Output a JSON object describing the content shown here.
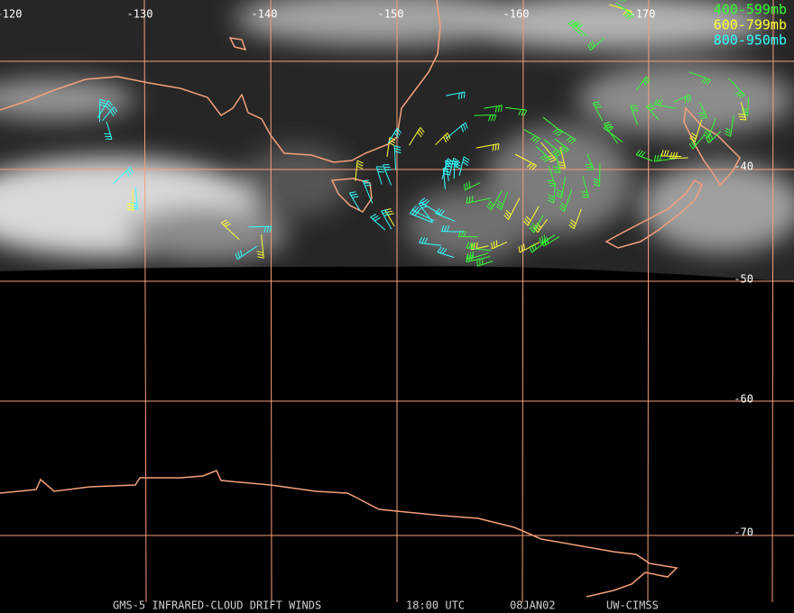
{
  "map": {
    "longitude_labels": [
      "-120",
      "-130",
      "-140",
      "-150",
      "-160",
      "-170"
    ],
    "latitude_labels": [
      "-40",
      "-50",
      "-60",
      "-70"
    ],
    "legend": [
      {
        "label": "400-599mb",
        "color": "#33ff33"
      },
      {
        "label": "600-799mb",
        "color": "#ffff33"
      },
      {
        "label": "800-950mb",
        "color": "#33ffff"
      }
    ],
    "footer": [
      "GMS-5 INFRARED-CLOUD DRIFT WINDS",
      "18:00 UTC",
      "08JAN02",
      "UW-CIMSS"
    ]
  }
}
